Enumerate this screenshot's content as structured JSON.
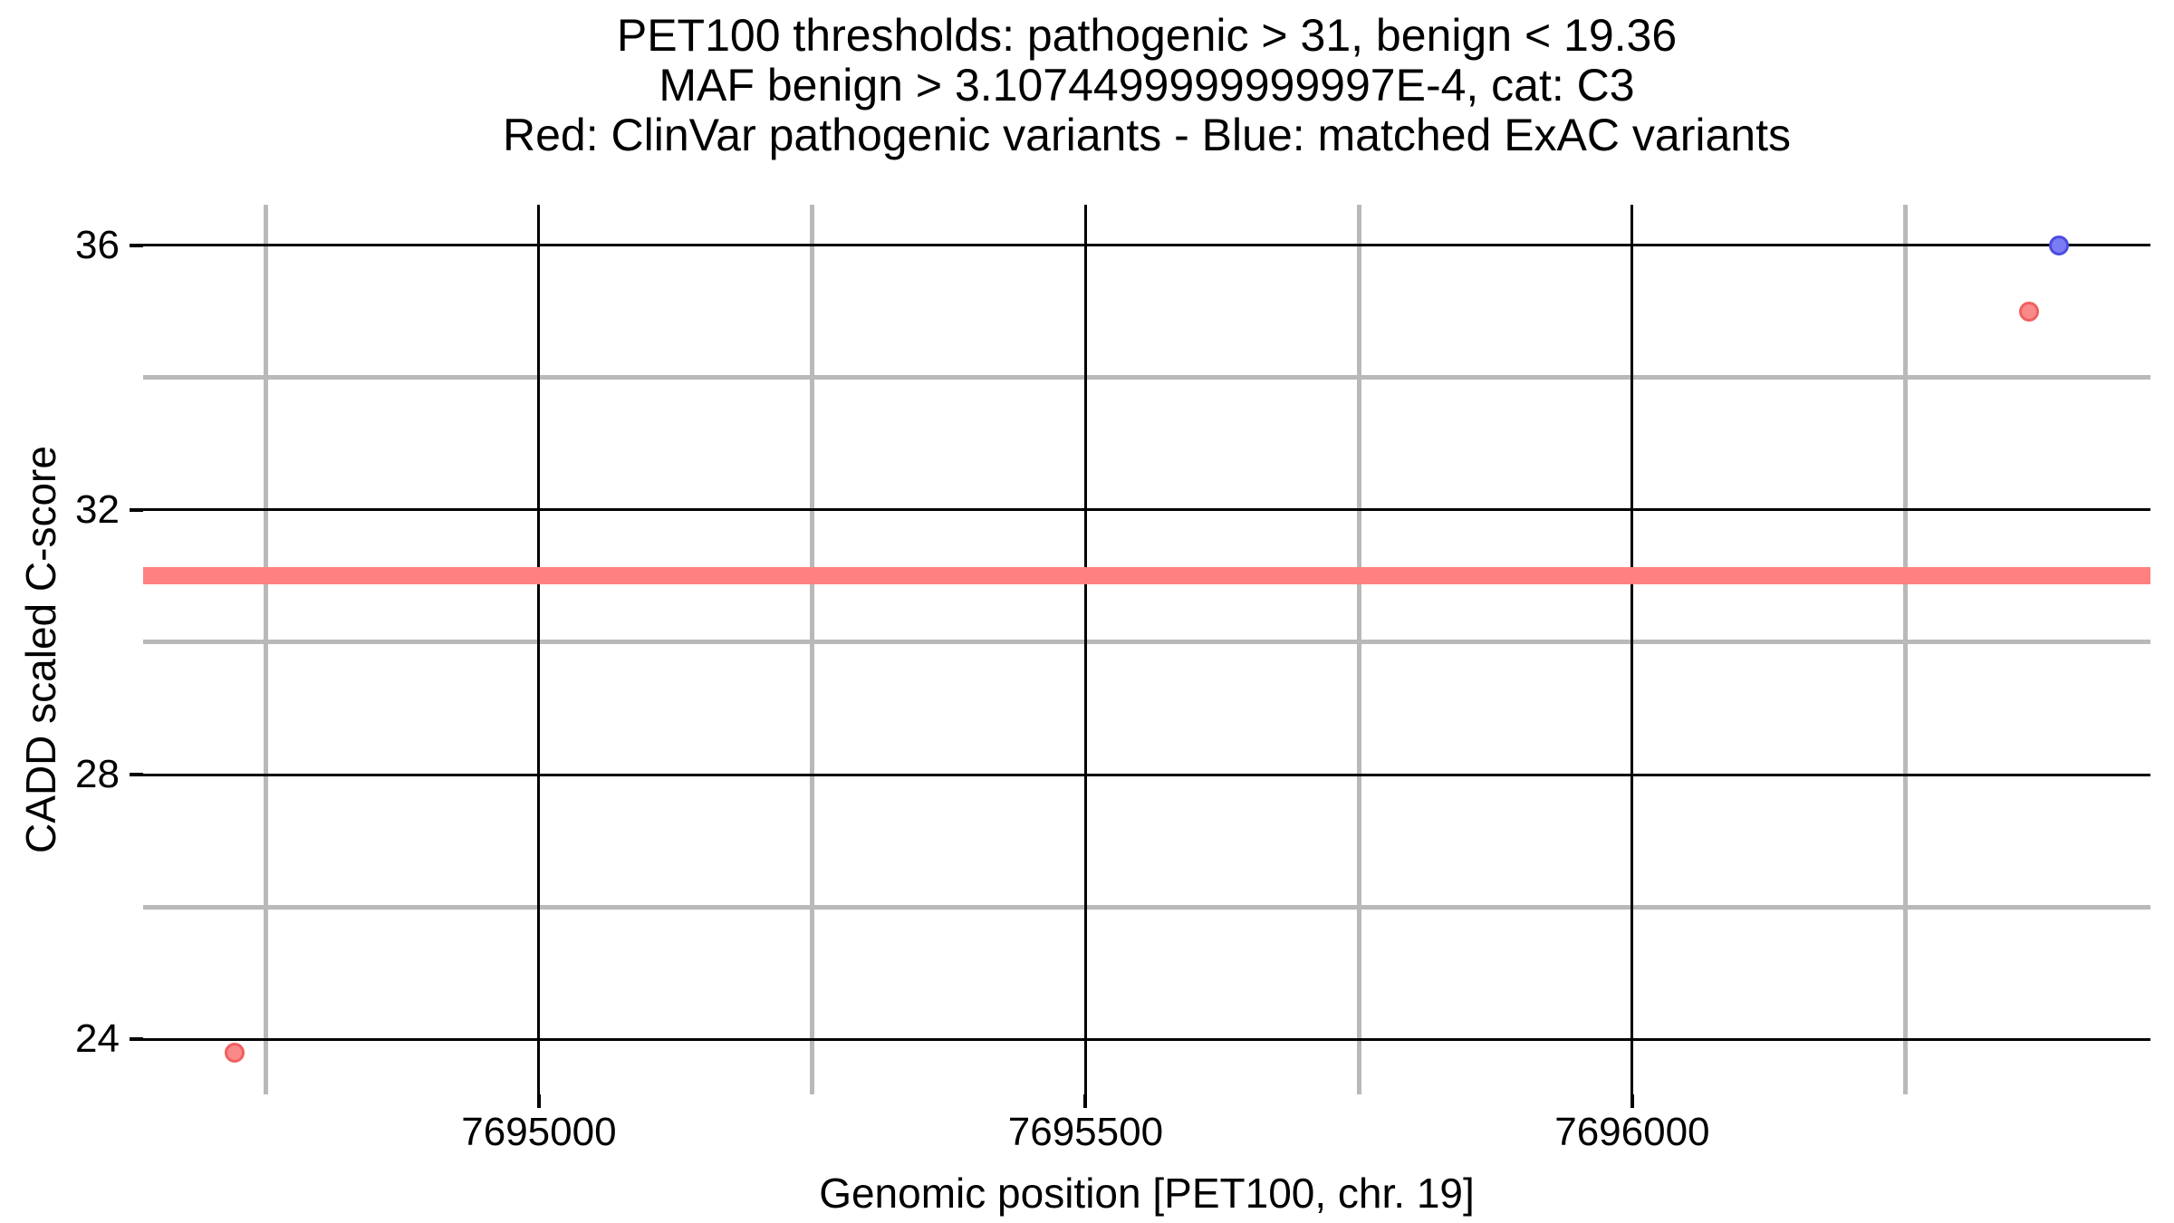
{
  "title": {
    "line1": "PET100 thresholds: pathogenic > 31, benign < 19.36",
    "line2": "MAF benign > 3.1074499999999997E-4, cat: C3",
    "line3": "Red: ClinVar pathogenic variants - Blue: matched ExAC variants"
  },
  "chart_data": {
    "type": "scatter",
    "title_lines": [
      "PET100 thresholds: pathogenic > 31, benign < 19.36",
      "MAF benign > 3.1074499999999997E-4, cat: C3",
      "Red: ClinVar pathogenic variants - Blue: matched ExAC variants"
    ],
    "xlabel": "Genomic position [PET100, chr. 19]",
    "ylabel": "CADD scaled C-score",
    "xlim": [
      7694638,
      7696474
    ],
    "ylim": [
      23.17,
      36.61
    ],
    "x_ticks": [
      7695000,
      7695500,
      7696000
    ],
    "x_minor_ticks": [
      7694750,
      7695250,
      7695750,
      7696250
    ],
    "y_ticks": [
      24,
      28,
      32,
      36
    ],
    "y_minor_ticks": [
      26,
      30,
      34
    ],
    "grid": {
      "major_color": "#000000",
      "minor_color": "#b9b9b9",
      "visible": true
    },
    "legend_position": "none",
    "threshold_line": {
      "y": 31,
      "color": "#ff8080",
      "meaning": "pathogenic > 31"
    },
    "series": [
      {
        "name": "ClinVar pathogenic variants",
        "color_fill": "#fa8a8a",
        "color_edge": "#f15f5f",
        "points": [
          {
            "x": 7694722,
            "y": 23.8
          },
          {
            "x": 7696363,
            "y": 35.0
          }
        ]
      },
      {
        "name": "matched ExAC variants",
        "color_fill": "#7b7bf3",
        "color_edge": "#4b4be0",
        "points": [
          {
            "x": 7696390,
            "y": 36.0
          }
        ]
      }
    ]
  }
}
